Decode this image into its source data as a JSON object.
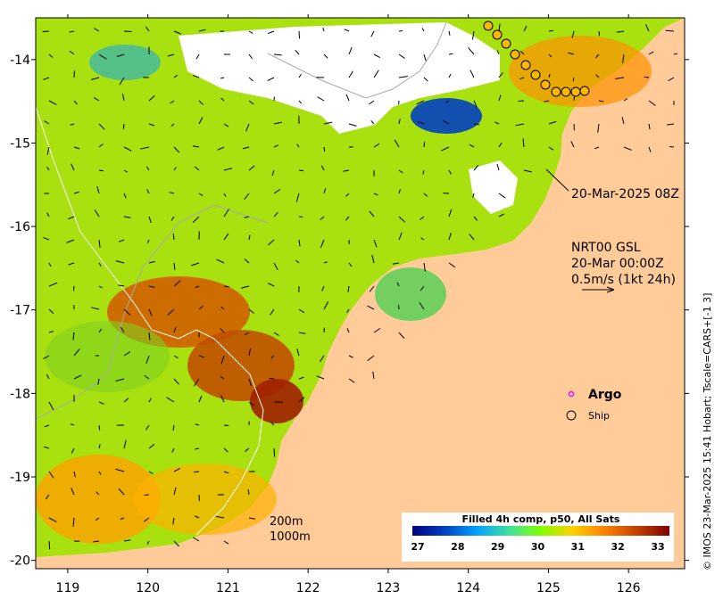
{
  "map": {
    "lon_ticks": [
      "119",
      "120",
      "121",
      "122",
      "123",
      "124",
      "125",
      "126"
    ],
    "lat_ticks": [
      "-14",
      "-15",
      "-16",
      "-17",
      "-18",
      "-19",
      "-20"
    ],
    "lon_range": [
      118.6,
      126.7
    ],
    "lat_range": [
      -20.1,
      -13.5
    ]
  },
  "timestamp_label": "20-Mar-2025 08Z",
  "current_info": {
    "line1": "NRT00 GSL",
    "line2": "20-Mar 00:00Z",
    "line3": "0.5m/s (1kt 24h)"
  },
  "legend": {
    "argo_label": "Argo",
    "ship_label": "Ship",
    "argo_color": "#ff00ff"
  },
  "isobaths": {
    "label_200": "200m",
    "label_1000": "1000m"
  },
  "colorbar": {
    "title": "Filled 4h comp, p50, All Sats",
    "ticks": [
      "27",
      "28",
      "29",
      "30",
      "31",
      "32",
      "33"
    ],
    "colors": [
      "#00007f",
      "#0040c0",
      "#00a0ff",
      "#40e0a0",
      "#80ff00",
      "#ffd000",
      "#ff8000",
      "#c04000",
      "#800000"
    ]
  },
  "credit": "© IMOS 23-Mar-2025 15:41 Hobart; Tscale=CARS+[-1 3]",
  "colors": {
    "land": "#ffcc99",
    "cloud": "#ffffff"
  }
}
